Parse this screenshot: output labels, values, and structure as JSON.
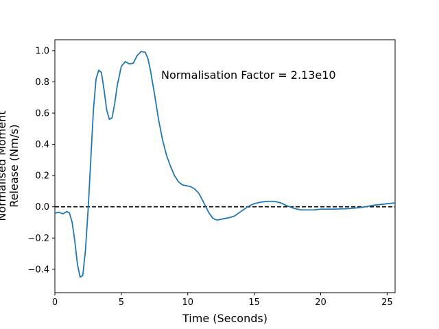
{
  "chart_data": {
    "type": "line",
    "xlabel": "Time (Seconds)",
    "ylabel_lines": [
      "Normalised Moment",
      "Release (Nm/s)"
    ],
    "xlim": [
      0,
      25.6
    ],
    "ylim": [
      -0.55,
      1.07
    ],
    "xticks": [
      0,
      5,
      10,
      15,
      20,
      25
    ],
    "yticks": [
      -0.4,
      -0.2,
      0.0,
      0.2,
      0.4,
      0.6,
      0.8,
      1.0
    ],
    "xtick_labels": [
      "0",
      "5",
      "10",
      "15",
      "20",
      "25"
    ],
    "ytick_labels": [
      "−0.4",
      "−0.2",
      "0.0",
      "0.2",
      "0.4",
      "0.6",
      "0.8",
      "1.0"
    ],
    "grid": false,
    "reference_line": {
      "y": 0.0,
      "style": "dashed",
      "color": "#000000"
    },
    "annotation": {
      "text": "Normalisation Factor = 2.13e10",
      "x": 8.0,
      "y": 0.82
    },
    "series": [
      {
        "color": "#1f77b4",
        "x": [
          0,
          0.3,
          0.6,
          0.9,
          1.1,
          1.3,
          1.5,
          1.7,
          1.9,
          2.1,
          2.3,
          2.5,
          2.7,
          2.9,
          3.1,
          3.3,
          3.5,
          3.7,
          3.9,
          4.1,
          4.3,
          4.5,
          4.7,
          5.0,
          5.3,
          5.6,
          5.9,
          6.2,
          6.5,
          6.8,
          7.0,
          7.2,
          7.5,
          7.8,
          8.1,
          8.4,
          8.7,
          9.0,
          9.3,
          9.6,
          9.9,
          10.2,
          10.5,
          10.8,
          11.0,
          11.3,
          11.6,
          11.9,
          12.2,
          12.5,
          12.8,
          13.1,
          13.5,
          14.0,
          14.5,
          15.0,
          15.5,
          16.0,
          16.5,
          17.0,
          17.5,
          18.0,
          18.5,
          19.0,
          19.5,
          20.0,
          21.0,
          22.0,
          23.0,
          24.0,
          24.5,
          25.0,
          25.6
        ],
        "values": [
          -0.04,
          -0.035,
          -0.045,
          -0.03,
          -0.04,
          -0.1,
          -0.22,
          -0.37,
          -0.45,
          -0.44,
          -0.28,
          -0.02,
          0.3,
          0.62,
          0.82,
          0.875,
          0.86,
          0.75,
          0.62,
          0.56,
          0.57,
          0.66,
          0.78,
          0.9,
          0.93,
          0.915,
          0.92,
          0.97,
          0.995,
          0.99,
          0.95,
          0.87,
          0.72,
          0.56,
          0.43,
          0.33,
          0.26,
          0.2,
          0.16,
          0.14,
          0.135,
          0.13,
          0.115,
          0.09,
          0.06,
          0.01,
          -0.04,
          -0.075,
          -0.085,
          -0.08,
          -0.075,
          -0.07,
          -0.06,
          -0.03,
          0.0,
          0.02,
          0.03,
          0.035,
          0.035,
          0.025,
          0.005,
          -0.01,
          -0.02,
          -0.02,
          -0.02,
          -0.015,
          -0.015,
          -0.012,
          -0.005,
          0.01,
          0.015,
          0.02,
          0.025
        ]
      }
    ]
  },
  "colors": {
    "line": "#1f77b4",
    "axes": "#000000",
    "background": "#ffffff"
  }
}
